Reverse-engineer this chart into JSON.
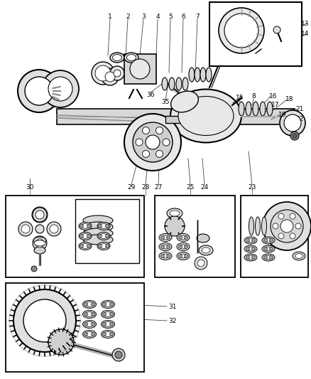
{
  "bg_color": "#ffffff",
  "line_color": "#000000",
  "text_color": "#000000",
  "fig_width": 4.38,
  "fig_height": 5.33,
  "dpi": 100
}
